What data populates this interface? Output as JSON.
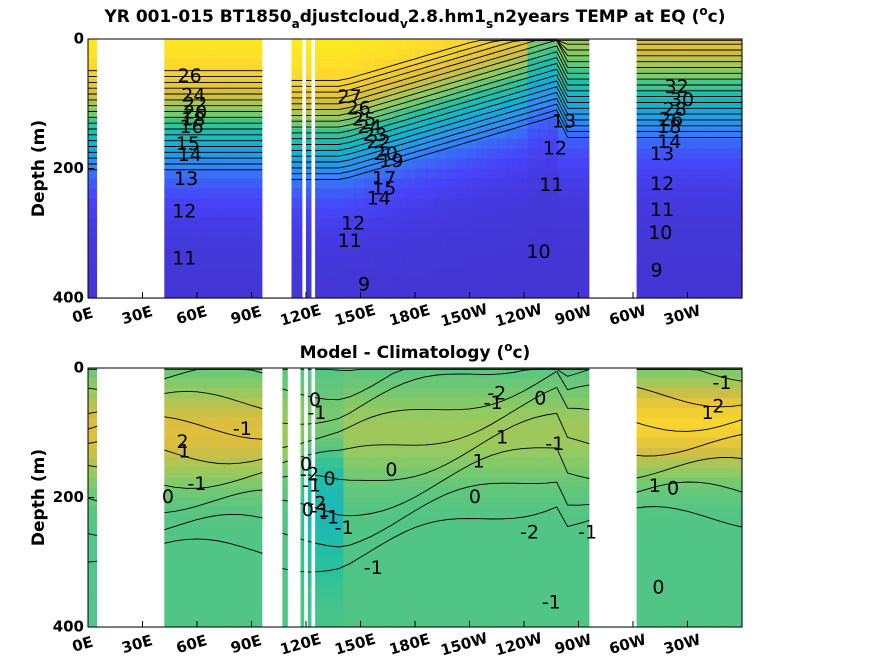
{
  "chart_data": [
    {
      "type": "heatmap",
      "title_parts": [
        "YR 001-015 BT1850",
        "a",
        "djustcloud",
        "v",
        "2.8.hm1",
        "s",
        "n2years TEMP at EQ (",
        "o",
        "c)"
      ],
      "ylabel": "Depth (m)",
      "ylim": [
        0,
        400
      ],
      "yticks": [
        0,
        200,
        400
      ],
      "xticks": [
        "0E",
        "30E",
        "60E",
        "90E",
        "120E",
        "150E",
        "180E",
        "150W",
        "120W",
        "90W",
        "60W",
        "30W"
      ],
      "xtick_lon": [
        0,
        30,
        60,
        90,
        120,
        150,
        180,
        210,
        240,
        270,
        300,
        330
      ],
      "xlim": [
        0,
        360
      ],
      "colormap": [
        "#3e26a8",
        "#4743f8",
        "#2f8bf5",
        "#11b3d1",
        "#29c19b",
        "#8ccb64",
        "#dcbd3f",
        "#feda2c",
        "#f9fb15"
      ],
      "clim": [
        7,
        29
      ],
      "mask_lon": [
        [
          5,
          42
        ],
        [
          96,
          112
        ],
        [
          118,
          120
        ],
        [
          123,
          125
        ],
        [
          276,
          302
        ]
      ],
      "contour_labels": [
        {
          "text": "26",
          "lon": 56,
          "depth": 58
        },
        {
          "text": "24",
          "lon": 58,
          "depth": 88
        },
        {
          "text": "22",
          "lon": 59,
          "depth": 102
        },
        {
          "text": "20",
          "lon": 59,
          "depth": 114
        },
        {
          "text": "18",
          "lon": 58,
          "depth": 125
        },
        {
          "text": "16",
          "lon": 57,
          "depth": 137
        },
        {
          "text": "15",
          "lon": 55,
          "depth": 163
        },
        {
          "text": "14",
          "lon": 56,
          "depth": 180
        },
        {
          "text": "13",
          "lon": 54,
          "depth": 217
        },
        {
          "text": "12",
          "lon": 53,
          "depth": 267
        },
        {
          "text": "11",
          "lon": 53,
          "depth": 340
        },
        {
          "text": "27",
          "lon": 144,
          "depth": 90
        },
        {
          "text": "26",
          "lon": 149,
          "depth": 108
        },
        {
          "text": "25",
          "lon": 152,
          "depth": 125
        },
        {
          "text": "24",
          "lon": 155,
          "depth": 137
        },
        {
          "text": "23",
          "lon": 158,
          "depth": 149
        },
        {
          "text": "22",
          "lon": 160,
          "depth": 160
        },
        {
          "text": "20",
          "lon": 164,
          "depth": 178
        },
        {
          "text": "19",
          "lon": 167,
          "depth": 189
        },
        {
          "text": "17",
          "lon": 163,
          "depth": 216
        },
        {
          "text": "15",
          "lon": 163,
          "depth": 232
        },
        {
          "text": "14",
          "lon": 160,
          "depth": 247
        },
        {
          "text": "12",
          "lon": 146,
          "depth": 286
        },
        {
          "text": "11",
          "lon": 144,
          "depth": 313
        },
        {
          "text": "9",
          "lon": 152,
          "depth": 380
        },
        {
          "text": "13",
          "lon": 262,
          "depth": 128
        },
        {
          "text": "12",
          "lon": 257,
          "depth": 170
        },
        {
          "text": "11",
          "lon": 255,
          "depth": 226
        },
        {
          "text": "10",
          "lon": 248,
          "depth": 330
        },
        {
          "text": "32",
          "lon": 324,
          "depth": 75
        },
        {
          "text": "30",
          "lon": 327,
          "depth": 95
        },
        {
          "text": "28",
          "lon": 323,
          "depth": 110
        },
        {
          "text": "26",
          "lon": 321,
          "depth": 125
        },
        {
          "text": "18",
          "lon": 320,
          "depth": 137
        },
        {
          "text": "14",
          "lon": 320,
          "depth": 160
        },
        {
          "text": "13",
          "lon": 316,
          "depth": 178
        },
        {
          "text": "12",
          "lon": 316,
          "depth": 225
        },
        {
          "text": "11",
          "lon": 316,
          "depth": 265
        },
        {
          "text": "10",
          "lon": 315,
          "depth": 300
        },
        {
          "text": "9",
          "lon": 313,
          "depth": 358
        }
      ]
    },
    {
      "type": "heatmap",
      "title_parts": [
        "Model - Climatology (",
        "o",
        "c)"
      ],
      "ylabel": "Depth (m)",
      "ylim": [
        0,
        400
      ],
      "yticks": [
        0,
        200,
        400
      ],
      "xticks": [
        "0E",
        "30E",
        "60E",
        "90E",
        "120E",
        "150E",
        "180E",
        "150W",
        "120W",
        "90W",
        "60W",
        "30W"
      ],
      "xtick_lon": [
        0,
        30,
        60,
        90,
        120,
        150,
        180,
        210,
        240,
        270,
        300,
        330
      ],
      "xlim": [
        0,
        360
      ],
      "colormap": [
        "#3e26a8",
        "#4743f8",
        "#2f8bf5",
        "#11b3d1",
        "#29c19b",
        "#8ccb64",
        "#dcbd3f",
        "#feda2c",
        "#f9fb15"
      ],
      "clim": [
        -6,
        6
      ],
      "mask_lon": [
        [
          5,
          42
        ],
        [
          96,
          107
        ],
        [
          110,
          117
        ],
        [
          119,
          121
        ],
        [
          123,
          125
        ],
        [
          276,
          302
        ]
      ],
      "contour_labels": [
        {
          "text": "2",
          "lon": 52,
          "depth": 115
        },
        {
          "text": "1",
          "lon": 53,
          "depth": 130
        },
        {
          "text": "-1",
          "lon": 85,
          "depth": 95
        },
        {
          "text": "-1",
          "lon": 60,
          "depth": 180
        },
        {
          "text": "0",
          "lon": 44,
          "depth": 200
        },
        {
          "text": "0",
          "lon": 125,
          "depth": 50
        },
        {
          "text": "-1",
          "lon": 126,
          "depth": 70
        },
        {
          "text": "0",
          "lon": 120,
          "depth": 150
        },
        {
          "text": "-2",
          "lon": 122,
          "depth": 165
        },
        {
          "text": "-1",
          "lon": 123,
          "depth": 182
        },
        {
          "text": "-2",
          "lon": 126,
          "depth": 210
        },
        {
          "text": "0",
          "lon": 121,
          "depth": 220
        },
        {
          "text": "-1",
          "lon": 133,
          "depth": 232
        },
        {
          "text": "-1",
          "lon": 141,
          "depth": 248
        },
        {
          "text": "0",
          "lon": 133,
          "depth": 172
        },
        {
          "text": "0",
          "lon": 167,
          "depth": 158
        },
        {
          "text": "-1",
          "lon": 128,
          "depth": 222
        },
        {
          "text": "-2",
          "lon": 225,
          "depth": 40
        },
        {
          "text": "-1",
          "lon": 223,
          "depth": 55
        },
        {
          "text": "0",
          "lon": 249,
          "depth": 48
        },
        {
          "text": "1",
          "lon": 228,
          "depth": 108
        },
        {
          "text": "-1",
          "lon": 257,
          "depth": 118
        },
        {
          "text": "1",
          "lon": 215,
          "depth": 145
        },
        {
          "text": "0",
          "lon": 213,
          "depth": 200
        },
        {
          "text": "-2",
          "lon": 243,
          "depth": 255
        },
        {
          "text": "-1",
          "lon": 275,
          "depth": 255
        },
        {
          "text": "-1",
          "lon": 157,
          "depth": 310
        },
        {
          "text": "-1",
          "lon": 255,
          "depth": 363
        },
        {
          "text": "-1",
          "lon": 349,
          "depth": 24
        },
        {
          "text": "1",
          "lon": 341,
          "depth": 70
        },
        {
          "text": "2",
          "lon": 347,
          "depth": 60
        },
        {
          "text": "1",
          "lon": 312,
          "depth": 183
        },
        {
          "text": "0",
          "lon": 322,
          "depth": 187
        },
        {
          "text": "0",
          "lon": 314,
          "depth": 340
        }
      ]
    }
  ]
}
